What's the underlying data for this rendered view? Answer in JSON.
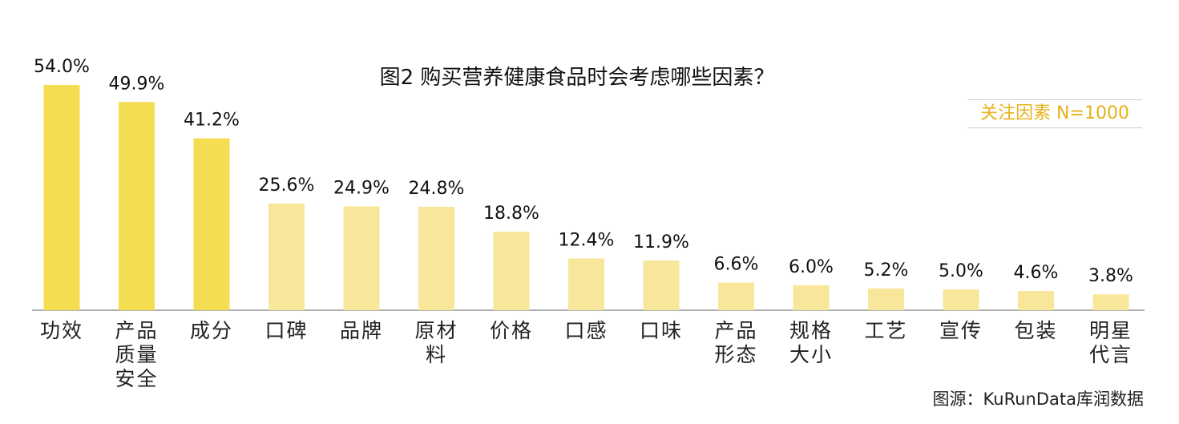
{
  "chart_data": {
    "type": "bar",
    "title": "图2 购买营养健康食品时会考虑哪些因素？",
    "subtitle": "关注因素 N=1000",
    "source": "图源：KuRunData库润数据",
    "categories": [
      "功效",
      "产品质量安全",
      "成分",
      "口碑",
      "品牌",
      "原材料",
      "价格",
      "口感",
      "口味",
      "产品形态",
      "规格大小",
      "工艺",
      "宣传",
      "包装",
      "明星代言"
    ],
    "values": [
      54.0,
      49.9,
      41.2,
      25.6,
      24.9,
      24.8,
      18.8,
      12.4,
      11.9,
      6.6,
      6.0,
      5.2,
      5.0,
      4.6,
      3.8
    ],
    "value_labels": [
      "54.0%",
      "49.9%",
      "41.2%",
      "25.6%",
      "24.9%",
      "24.8%",
      "18.8%",
      "12.4%",
      "11.9%",
      "6.6%",
      "6.0%",
      "5.2%",
      "5.0%",
      "4.6%",
      "3.8%"
    ],
    "colors": [
      "#f5dd52",
      "#f5dd52",
      "#f5dd52",
      "#f8e79a",
      "#f8e79a",
      "#f8e79a",
      "#f8e79a",
      "#f8e79a",
      "#f8e79a",
      "#f8e79a",
      "#f8e79a",
      "#f8e79a",
      "#f8e79a",
      "#f8e79a",
      "#f8e79a"
    ]
  }
}
